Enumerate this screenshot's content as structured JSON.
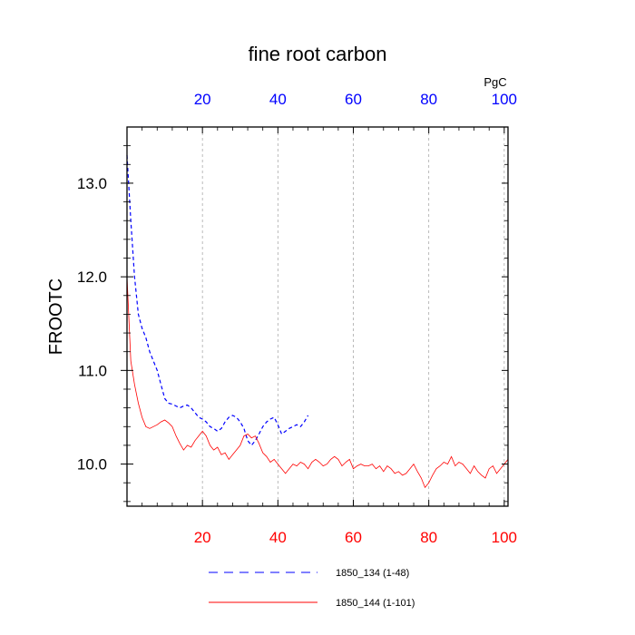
{
  "chart_data": {
    "type": "line",
    "title": "fine root carbon",
    "ylabel": "FROOTC",
    "units": "PgC",
    "xlim": [
      0,
      101
    ],
    "ylim": [
      9.55,
      13.6
    ],
    "grid": "vertical dashed",
    "top_ticks": [
      "20",
      "40",
      "60",
      "80",
      "100"
    ],
    "bottom_ticks": [
      "20",
      "40",
      "60",
      "80",
      "100"
    ],
    "y_ticks": [
      "10.0",
      "11.0",
      "12.0",
      "13.0"
    ],
    "colors": {
      "series1": "#0000ff",
      "series2": "#ff0000",
      "top_axis": "#0000ff",
      "bottom_axis": "#ff0000"
    },
    "series": [
      {
        "name": "1850_134 (1-48)",
        "color": "#0000ff",
        "style": "dashed",
        "x": [
          0,
          1,
          2,
          3,
          4,
          5,
          6,
          7,
          8,
          9,
          10,
          11,
          12,
          13,
          14,
          15,
          16,
          17,
          18,
          19,
          20,
          21,
          22,
          23,
          24,
          25,
          26,
          27,
          28,
          29,
          30,
          31,
          32,
          33,
          34,
          35,
          36,
          37,
          38,
          39,
          40,
          41,
          42,
          43,
          44,
          45,
          46,
          47,
          48
        ],
        "values": [
          13.3,
          12.6,
          12.0,
          11.6,
          11.45,
          11.35,
          11.2,
          11.1,
          11.0,
          10.85,
          10.7,
          10.65,
          10.64,
          10.62,
          10.6,
          10.62,
          10.63,
          10.6,
          10.55,
          10.5,
          10.48,
          10.45,
          10.4,
          10.38,
          10.35,
          10.38,
          10.45,
          10.5,
          10.52,
          10.5,
          10.45,
          10.38,
          10.25,
          10.2,
          10.25,
          10.32,
          10.4,
          10.45,
          10.48,
          10.5,
          10.42,
          10.32,
          10.35,
          10.38,
          10.4,
          10.42,
          10.4,
          10.45,
          10.52
        ]
      },
      {
        "name": "1850_144 (1-101)",
        "color": "#ff0000",
        "style": "solid",
        "x": [
          0,
          1,
          2,
          3,
          4,
          5,
          6,
          7,
          8,
          9,
          10,
          11,
          12,
          13,
          14,
          15,
          16,
          17,
          18,
          19,
          20,
          21,
          22,
          23,
          24,
          25,
          26,
          27,
          28,
          29,
          30,
          31,
          32,
          33,
          34,
          35,
          36,
          37,
          38,
          39,
          40,
          41,
          42,
          43,
          44,
          45,
          46,
          47,
          48,
          49,
          50,
          51,
          52,
          53,
          54,
          55,
          56,
          57,
          58,
          59,
          60,
          61,
          62,
          63,
          64,
          65,
          66,
          67,
          68,
          69,
          70,
          71,
          72,
          73,
          74,
          75,
          76,
          77,
          78,
          79,
          80,
          81,
          82,
          83,
          84,
          85,
          86,
          87,
          88,
          89,
          90,
          91,
          92,
          93,
          94,
          95,
          96,
          97,
          98,
          99,
          100,
          101
        ],
        "values": [
          12.0,
          11.1,
          10.85,
          10.65,
          10.5,
          10.4,
          10.38,
          10.4,
          10.42,
          10.45,
          10.47,
          10.44,
          10.4,
          10.3,
          10.22,
          10.15,
          10.2,
          10.18,
          10.25,
          10.3,
          10.35,
          10.3,
          10.2,
          10.15,
          10.18,
          10.1,
          10.12,
          10.05,
          10.1,
          10.15,
          10.2,
          10.3,
          10.32,
          10.28,
          10.3,
          10.22,
          10.12,
          10.08,
          10.02,
          10.05,
          10.0,
          9.95,
          9.9,
          9.95,
          10.0,
          9.98,
          10.02,
          10.0,
          9.95,
          10.02,
          10.05,
          10.02,
          9.98,
          10.0,
          10.05,
          10.08,
          10.05,
          9.98,
          10.02,
          10.05,
          9.95,
          9.98,
          10.0,
          9.98,
          9.98,
          10.0,
          9.95,
          9.98,
          9.92,
          9.98,
          9.95,
          9.9,
          9.92,
          9.88,
          9.9,
          9.95,
          10.0,
          9.92,
          9.85,
          9.75,
          9.8,
          9.88,
          9.95,
          9.98,
          10.02,
          10.0,
          10.08,
          9.98,
          10.02,
          10.0,
          9.95,
          9.9,
          9.98,
          9.92,
          9.88,
          9.85,
          9.95,
          9.98,
          9.9,
          9.95,
          10.0,
          10.05
        ]
      }
    ]
  }
}
